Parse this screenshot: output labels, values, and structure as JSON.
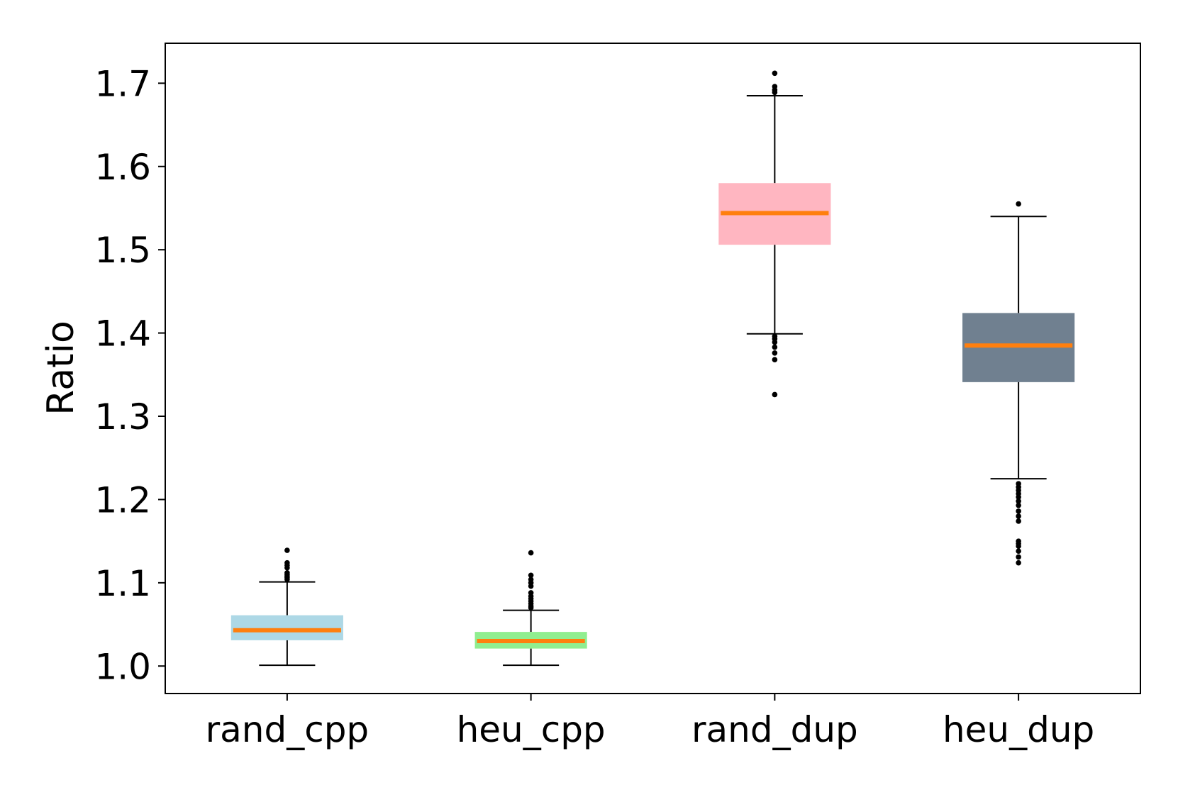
{
  "chart_data": {
    "type": "box",
    "title": "",
    "xlabel": "",
    "ylabel": "Ratio",
    "ylim": [
      0.967,
      1.748
    ],
    "yticks": [
      "1.0",
      "1.1",
      "1.2",
      "1.3",
      "1.4",
      "1.5",
      "1.6",
      "1.7"
    ],
    "grid": false,
    "median_color": "#ff7f0e",
    "boxes": [
      {
        "label": "rand_cpp",
        "color": "#add8e6",
        "whisker_low": 1.001,
        "q1": 1.031,
        "median": 1.043,
        "q3": 1.061,
        "whisker_high": 1.101,
        "outliers": [
          1.104,
          1.106,
          1.108,
          1.11,
          1.112,
          1.118,
          1.121,
          1.124,
          1.139
        ]
      },
      {
        "label": "heu_cpp",
        "color": "#90ee90",
        "whisker_low": 1.001,
        "q1": 1.021,
        "median": 1.03,
        "q3": 1.041,
        "whisker_high": 1.067,
        "outliers": [
          1.07,
          1.072,
          1.075,
          1.078,
          1.081,
          1.084,
          1.088,
          1.096,
          1.1,
          1.104,
          1.109,
          1.136
        ]
      },
      {
        "label": "rand_dup",
        "color": "#ffb6c1",
        "whisker_low": 1.399,
        "q1": 1.506,
        "median": 1.544,
        "q3": 1.58,
        "whisker_high": 1.685,
        "outliers": [
          1.326,
          1.368,
          1.376,
          1.383,
          1.389,
          1.393,
          1.396,
          1.689,
          1.692,
          1.696,
          1.712
        ]
      },
      {
        "label": "heu_dup",
        "color": "#708090",
        "whisker_low": 1.225,
        "q1": 1.341,
        "median": 1.385,
        "q3": 1.424,
        "whisker_high": 1.54,
        "outliers": [
          1.124,
          1.131,
          1.138,
          1.144,
          1.147,
          1.15,
          1.174,
          1.18,
          1.186,
          1.193,
          1.198,
          1.203,
          1.207,
          1.211,
          1.215,
          1.219,
          1.555
        ]
      }
    ]
  }
}
